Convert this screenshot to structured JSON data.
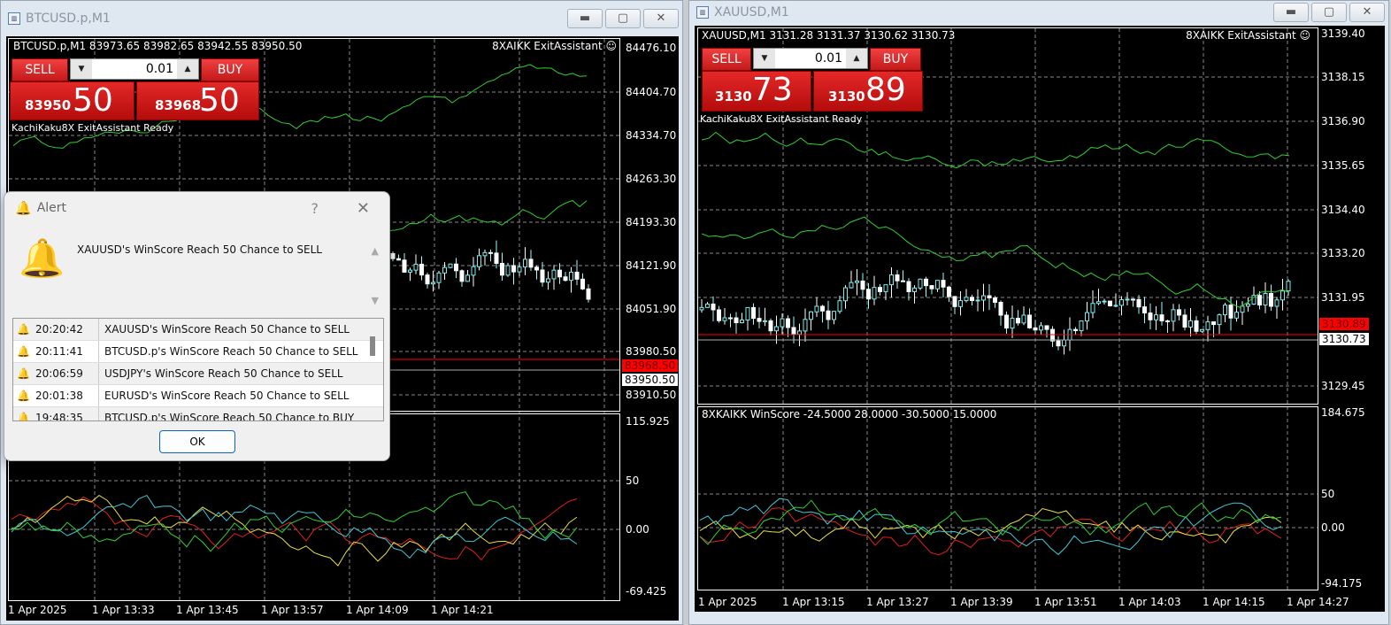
{
  "left": {
    "title": "BTCUSD.p,M1",
    "header": "BTCUSD.p,M1  83973.65 83982.65 83942.55 83950.50",
    "ea": "8XAIKK ExitAssistant",
    "status": "KachiKaku8X ExitAssistant Ready",
    "trade": {
      "sell": "SELL",
      "buy": "BUY",
      "lot": "0.01",
      "sell_small": "83950",
      "sell_big": "50",
      "buy_small": "83968",
      "buy_big": "50"
    },
    "price_axis": [
      "84476.10",
      "84404.70",
      "84334.70",
      "84263.30",
      "84193.30",
      "84121.90",
      "84051.90",
      "83980.50",
      "83910.50"
    ],
    "ask_tag": "83968.50",
    "bid_tag": "83950.50",
    "ind_axis": [
      "115.925",
      "50",
      "0.00",
      "-69.425"
    ],
    "time_axis": [
      "1 Apr 2025",
      "1 Apr 13:33",
      "1 Apr 13:45",
      "1 Apr 13:57",
      "1 Apr 14:09",
      "1 Apr 14:21"
    ]
  },
  "right": {
    "title": "XAUUSD,M1",
    "header": "XAUUSD,M1  3131.28 3131.37 3130.62 3130.73",
    "ea": "8XAIKK ExitAssistant",
    "status": "KachiKaku8X ExitAssistant Ready",
    "trade": {
      "sell": "SELL",
      "buy": "BUY",
      "lot": "0.01",
      "sell_small": "3130",
      "sell_big": "73",
      "buy_small": "3130",
      "buy_big": "89"
    },
    "price_axis": [
      "3139.40",
      "3138.15",
      "3136.90",
      "3135.65",
      "3134.40",
      "3133.20",
      "3131.95",
      "3129.45"
    ],
    "ask_tag": "3130.89",
    "bid_tag": "3130.73",
    "indicator_label": "8XKAIKK WinScore -24.5000 28.0000 -30.5000 15.0000",
    "ind_axis": [
      "184.675",
      "50",
      "0.00",
      "-94.175"
    ],
    "time_axis": [
      "1 Apr 2025",
      "1 Apr 13:15",
      "1 Apr 13:27",
      "1 Apr 13:39",
      "1 Apr 13:51",
      "1 Apr 14:03",
      "1 Apr 14:15",
      "1 Apr 14:27"
    ]
  },
  "alert": {
    "title": "Alert",
    "help": "?",
    "message": "XAUUSD's WinScore Reach 50 Chance to SELL",
    "ok": "OK",
    "rows": [
      {
        "time": "20:20:42",
        "msg": "XAUUSD's WinScore Reach 50 Chance to SELL"
      },
      {
        "time": "20:11:41",
        "msg": "BTCUSD.p's WinScore Reach 50 Chance to SELL"
      },
      {
        "time": "20:06:59",
        "msg": "USDJPY's WinScore Reach 50 Chance to SELL"
      },
      {
        "time": "20:01:38",
        "msg": "EURUSD's WinScore Reach 50 Chance to SELL"
      },
      {
        "time": "19:48:35",
        "msg": "BTCUSD.p's WinScore Reach 50 Chance to BUY"
      }
    ]
  },
  "colors": {
    "sell": "#d92020",
    "ask_line": "#ff0000",
    "ind_red": "#e02020",
    "ind_yellow": "#e8e040",
    "ind_cyan": "#40c8d8",
    "ind_green": "#30d030",
    "band": "#30d030"
  }
}
